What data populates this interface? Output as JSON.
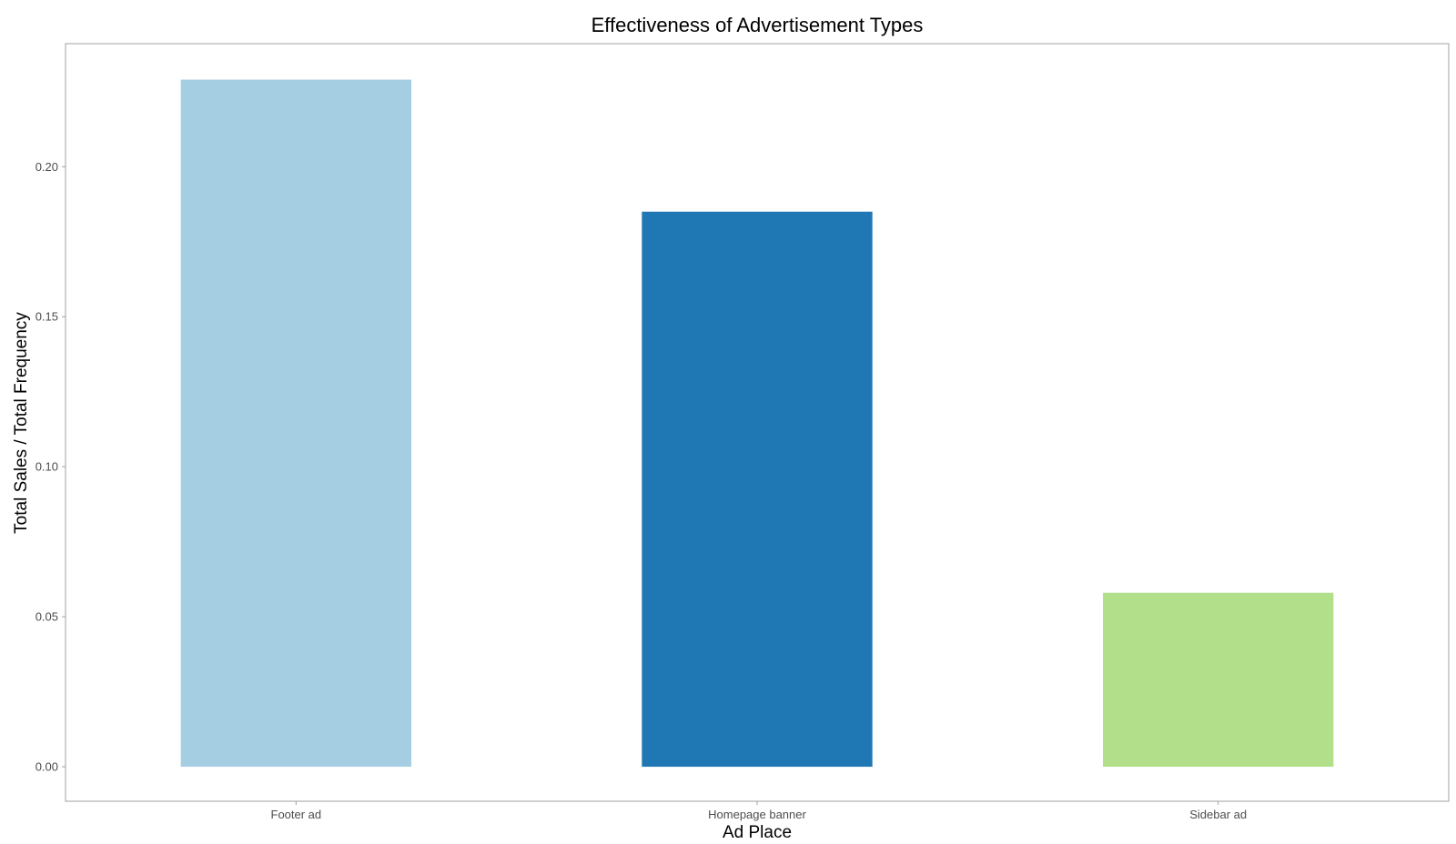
{
  "chart_data": {
    "type": "bar",
    "title": "Effectiveness of Advertisement Types",
    "xlabel": "Ad Place",
    "ylabel": "Total Sales / Total Frequency",
    "categories": [
      "Footer ad",
      "Homepage banner",
      "Sidebar ad"
    ],
    "values": [
      0.229,
      0.185,
      0.058
    ],
    "colors": [
      "#a6cee3",
      "#1f78b4",
      "#b2df8a"
    ],
    "ylim": [
      -0.0115,
      0.241
    ],
    "yticks": [
      0.0,
      0.05,
      0.1,
      0.15,
      0.2
    ],
    "ytick_labels": [
      "0.00",
      "0.05",
      "0.10",
      "0.15",
      "0.20"
    ],
    "grid": false,
    "legend": "none"
  }
}
